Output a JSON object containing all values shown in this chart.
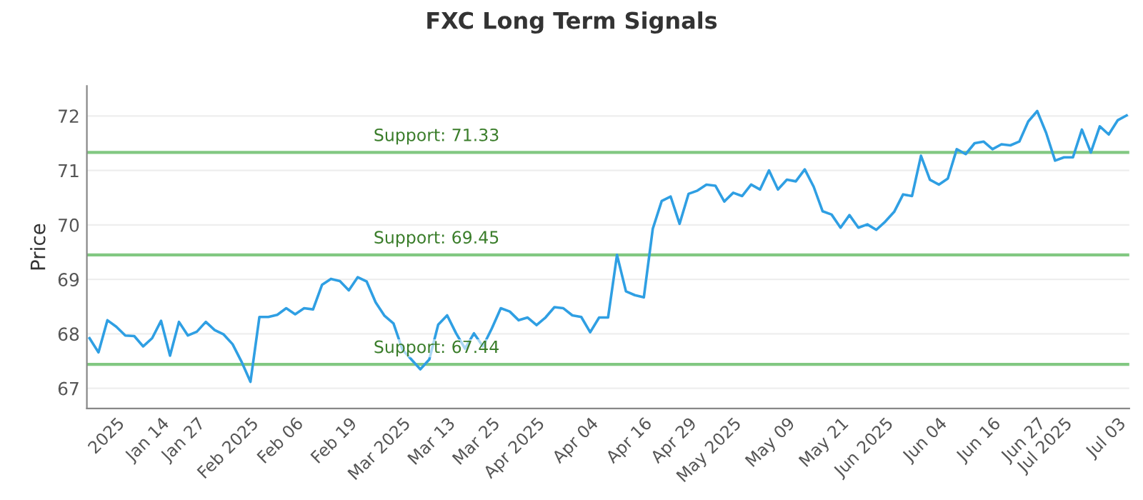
{
  "chart_data": {
    "type": "line",
    "title": "FXC Long Term Signals",
    "ylabel": "Price",
    "categories": [
      null,
      null,
      null,
      "2025",
      null,
      null,
      null,
      null,
      "Jan 14",
      null,
      null,
      null,
      "Jan 27",
      null,
      null,
      null,
      null,
      null,
      "Feb 2025",
      null,
      null,
      null,
      null,
      "Feb 06",
      null,
      null,
      null,
      null,
      null,
      "Feb 19",
      null,
      null,
      null,
      null,
      null,
      "Mar 2025",
      null,
      null,
      null,
      null,
      "Mar 13",
      null,
      null,
      null,
      null,
      "Mar 25",
      null,
      null,
      null,
      null,
      "Apr 2025",
      null,
      null,
      null,
      null,
      null,
      "Apr 04",
      null,
      null,
      null,
      null,
      null,
      "Apr 16",
      null,
      null,
      null,
      null,
      "Apr 29",
      null,
      null,
      null,
      null,
      "May 2025",
      null,
      null,
      null,
      null,
      null,
      "May 09",
      null,
      null,
      null,
      null,
      null,
      "May 21",
      null,
      null,
      null,
      null,
      "Jun 2025",
      null,
      null,
      null,
      null,
      null,
      "Jun 04",
      null,
      null,
      null,
      null,
      null,
      "Jun 16",
      null,
      null,
      null,
      null,
      "Jun 27",
      null,
      null,
      "Jul 2025",
      null,
      null,
      null,
      null,
      null,
      "Jul 03",
      null
    ],
    "ylim": [
      66.63,
      72.55
    ],
    "yticks": [
      67,
      68,
      69,
      70,
      71,
      72
    ],
    "grid": "y",
    "marker": "none",
    "line_style": "solid",
    "ref_lines": [
      {
        "axis": "y",
        "value": 71.33,
        "label": "Support: 71.33",
        "color": "#82c882"
      },
      {
        "axis": "y",
        "value": 69.45,
        "label": "Support: 69.45",
        "color": "#82c882"
      },
      {
        "axis": "y",
        "value": 67.44,
        "label": "Support: 67.44",
        "color": "#82c882"
      }
    ],
    "series": [
      {
        "color": "#2f9fe3",
        "values": [
          67.92,
          67.66,
          68.25,
          68.13,
          67.97,
          67.96,
          67.77,
          67.92,
          68.24,
          67.6,
          68.22,
          67.97,
          68.04,
          68.22,
          68.07,
          67.99,
          67.81,
          67.49,
          67.12,
          68.31,
          68.31,
          68.35,
          68.47,
          68.36,
          68.47,
          68.45,
          68.9,
          69.01,
          68.97,
          68.8,
          69.04,
          68.96,
          68.58,
          68.33,
          68.19,
          67.71,
          67.53,
          67.35,
          67.53,
          68.17,
          68.34,
          68.01,
          67.73,
          68.01,
          67.77,
          68.1,
          68.47,
          68.41,
          68.25,
          68.3,
          68.16,
          68.3,
          68.49,
          68.47,
          68.34,
          68.31,
          68.03,
          68.3,
          68.3,
          69.45,
          68.78,
          68.71,
          68.67,
          69.93,
          70.44,
          70.52,
          70.02,
          70.57,
          70.63,
          70.74,
          70.72,
          70.43,
          70.59,
          70.53,
          70.74,
          70.65,
          71.0,
          70.65,
          70.83,
          70.8,
          71.02,
          70.7,
          70.25,
          70.19,
          69.95,
          70.18,
          69.95,
          70.01,
          69.91,
          70.06,
          70.24,
          70.56,
          70.53,
          71.27,
          70.83,
          70.74,
          70.85,
          71.39,
          71.3,
          71.5,
          71.53,
          71.39,
          71.48,
          71.46,
          71.53,
          71.9,
          72.09,
          71.69,
          71.18,
          71.24,
          71.24,
          71.75,
          71.33,
          71.81,
          71.66,
          71.92,
          72.01
        ]
      }
    ]
  }
}
